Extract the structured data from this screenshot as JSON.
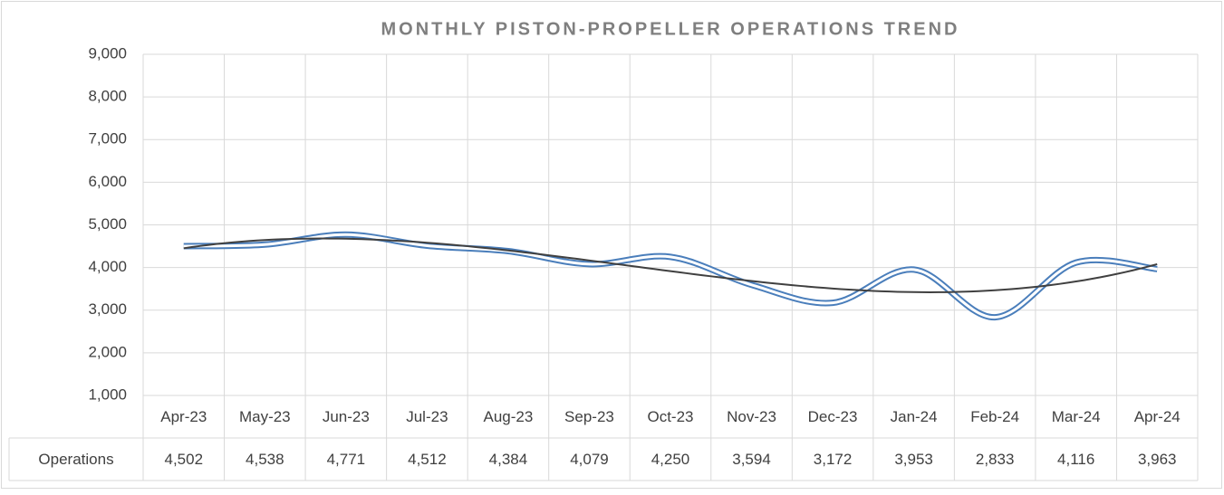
{
  "chart_data": {
    "type": "line",
    "title": "MONTHLY PISTON-PROPELLER OPERATIONS TREND",
    "categories": [
      "Apr-23",
      "May-23",
      "Jun-23",
      "Jul-23",
      "Aug-23",
      "Sep-23",
      "Oct-23",
      "Nov-23",
      "Dec-23",
      "Jan-24",
      "Feb-24",
      "Mar-24",
      "Apr-24"
    ],
    "series": [
      {
        "name": "Operations",
        "color": "#4a7ebb",
        "values": [
          4502,
          4538,
          4771,
          4512,
          4384,
          4079,
          4250,
          3594,
          3172,
          3953,
          2833,
          4116,
          3963
        ],
        "value_labels": [
          "4,502",
          "4,538",
          "4,771",
          "4,512",
          "4,384",
          "4,079",
          "4,250",
          "3,594",
          "3,172",
          "3,953",
          "2,833",
          "4,116",
          "3,963"
        ]
      }
    ],
    "ylim": [
      1000,
      9000
    ],
    "yticks": [
      {
        "value": 1000,
        "label": "1,000"
      },
      {
        "value": 2000,
        "label": "2,000"
      },
      {
        "value": 3000,
        "label": "3,000"
      },
      {
        "value": 4000,
        "label": "4,000"
      },
      {
        "value": 5000,
        "label": "5,000"
      },
      {
        "value": 6000,
        "label": "6,000"
      },
      {
        "value": 7000,
        "label": "7,000"
      },
      {
        "value": 8000,
        "label": "8,000"
      },
      {
        "value": 9000,
        "label": "9,000"
      }
    ],
    "grid": true,
    "smooth": true,
    "data_table": true,
    "trendline": {
      "type": "polynomial",
      "order": 3,
      "color": "#404040"
    }
  }
}
